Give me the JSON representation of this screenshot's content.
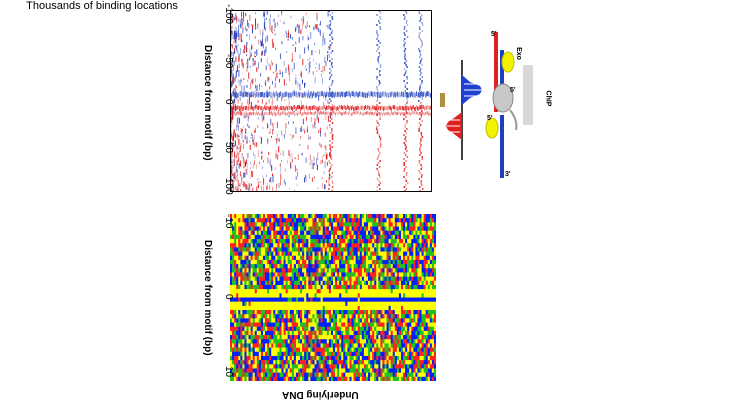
{
  "top_panel": {
    "title": "Thousands of binding locations",
    "ylabel": "Distance from motif (bp)",
    "yticks": [
      "-100",
      "-50",
      "0",
      "50",
      "100"
    ],
    "colors": {
      "blue_strand": "#1f3fbf",
      "red_strand": "#e01010"
    }
  },
  "bottom_panel": {
    "ylabel": "Distance from motif (bp)",
    "yticks": [
      "-10",
      "0",
      "10"
    ],
    "xlabel": "Underlying DNA",
    "base_colors": {
      "A": "#ff2020",
      "C": "#0020ff",
      "G": "#ffff00",
      "T": "#20c020"
    }
  },
  "schematic": {
    "strand_top_label": "5'",
    "strand_bottom_label": "3'",
    "exo_label": "Exo",
    "chip_label": "ChIP",
    "top_end_label": "5'",
    "bottom_end_label": "5'",
    "colors": {
      "top_strand": "#e02020",
      "bottom_strand": "#1f3fbf",
      "protein": "#c8c8c8",
      "exo": "#f2f200"
    }
  }
}
